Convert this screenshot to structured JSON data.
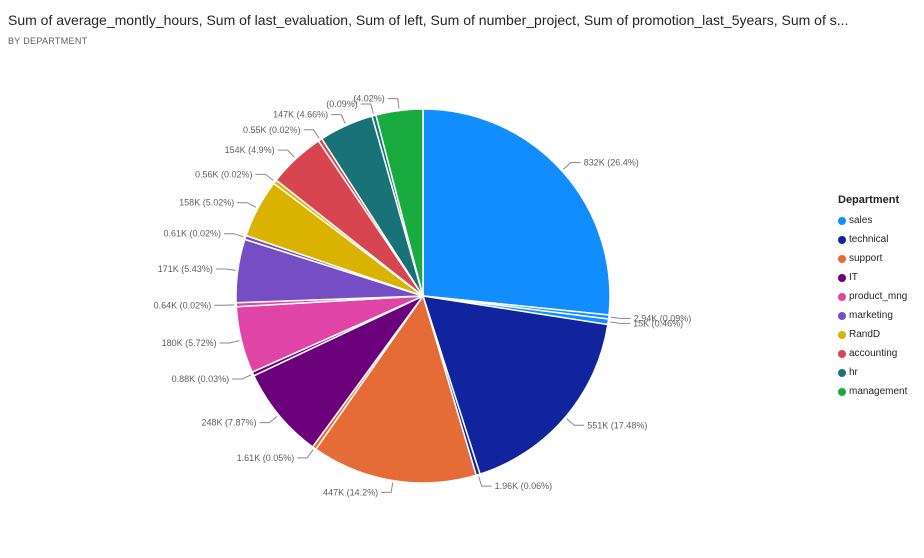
{
  "header": {
    "title": "Sum of average_montly_hours, Sum of last_evaluation, Sum of left, Sum of number_project, Sum of promotion_last_5years, Sum of s...",
    "subtitle": "BY DEPARTMENT"
  },
  "legend": {
    "title": "Department",
    "items": [
      {
        "label": "sales",
        "color": "#118DFF"
      },
      {
        "label": "technical",
        "color": "#12239E"
      },
      {
        "label": "support",
        "color": "#E66C37"
      },
      {
        "label": "IT",
        "color": "#6B007B"
      },
      {
        "label": "product_mng",
        "color": "#E044A7"
      },
      {
        "label": "marketing",
        "color": "#744EC2"
      },
      {
        "label": "RandD",
        "color": "#D9B300"
      },
      {
        "label": "accounting",
        "color": "#D64550"
      },
      {
        "label": "hr",
        "color": "#197278"
      },
      {
        "label": "management",
        "color": "#1AAB40"
      }
    ]
  },
  "chart_data": {
    "type": "pie",
    "title": "Sum of average_montly_hours, Sum of last_evaluation, Sum of left, Sum of number_project, Sum of promotion_last_5years, Sum of s...",
    "subtitle": "BY DEPARTMENT",
    "legend_title": "Department",
    "legend_position": "right",
    "slices": [
      {
        "department": "sales",
        "value": 832000,
        "label": "832K (26.4%)",
        "color": "#118DFF"
      },
      {
        "department": "sales",
        "value": 2940,
        "label": "2.94K (0.09%)",
        "color": "#118DFF"
      },
      {
        "department": "sales",
        "value": 15000,
        "label": "15K (0.46%)",
        "color": "#118DFF"
      },
      {
        "department": "technical",
        "value": 551000,
        "label": "551K (17.48%)",
        "color": "#12239E"
      },
      {
        "department": "technical",
        "value": 1960,
        "label": "1.96K (0.06%)",
        "color": "#12239E"
      },
      {
        "department": "support",
        "value": 447000,
        "label": "447K (14.2%)",
        "color": "#E66C37"
      },
      {
        "department": "support",
        "value": 1610,
        "label": "1.61K (0.05%)",
        "color": "#E66C37"
      },
      {
        "department": "IT",
        "value": 248000,
        "label": "248K (7.87%)",
        "color": "#6B007B"
      },
      {
        "department": "IT",
        "value": 880,
        "label": "0.88K (0.03%)",
        "color": "#6B007B"
      },
      {
        "department": "product_mng",
        "value": 180000,
        "label": "180K (5.72%)",
        "color": "#E044A7"
      },
      {
        "department": "product_mng",
        "value": 640,
        "label": "0.64K (0.02%)",
        "color": "#E044A7"
      },
      {
        "department": "marketing",
        "value": 171000,
        "label": "171K (5.43%)",
        "color": "#744EC2"
      },
      {
        "department": "marketing",
        "value": 610,
        "label": "0.61K (0.02%)",
        "color": "#744EC2"
      },
      {
        "department": "RandD",
        "value": 158000,
        "label": "158K (5.02%)",
        "color": "#D9B300"
      },
      {
        "department": "RandD",
        "value": 560,
        "label": "0.56K (0.02%)",
        "color": "#D9B300"
      },
      {
        "department": "accounting",
        "value": 154000,
        "label": "154K (4.9%)",
        "color": "#D64550"
      },
      {
        "department": "accounting",
        "value": 550,
        "label": "0.55K (0.02%)",
        "color": "#D64550"
      },
      {
        "department": "hr",
        "value": 147000,
        "label": "147K (4.66%)",
        "color": "#197278"
      },
      {
        "department": "hr",
        "value": 2840,
        "label": "(0.09%)",
        "color": "#197278"
      },
      {
        "department": "management",
        "value": 126700,
        "label": "(4.02%)",
        "color": "#1AAB40"
      }
    ]
  }
}
